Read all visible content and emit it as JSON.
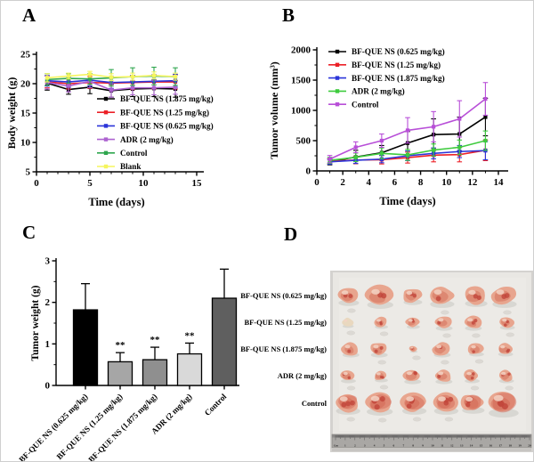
{
  "figure": {
    "background": "#ffffff",
    "panels": [
      {
        "label": "A"
      },
      {
        "label": "B"
      },
      {
        "label": "C"
      },
      {
        "label": "D"
      }
    ]
  },
  "chart_data": [
    {
      "id": "A",
      "type": "line",
      "title": "",
      "xlabel": "Time (days)",
      "ylabel": "Body weight (g)",
      "xlim": [
        0,
        15
      ],
      "ylim": [
        5,
        25
      ],
      "xticks": [
        0,
        5,
        10,
        15
      ],
      "yticks": [
        5,
        10,
        15,
        20,
        25
      ],
      "grid": false,
      "legend_position": "inside-bottom-right",
      "x": [
        1,
        3,
        5,
        7,
        9,
        11,
        13
      ],
      "series": [
        {
          "name": "BF-QUE NS (1.875 mg/kg)",
          "color": "#000000",
          "values": [
            20.1,
            19.0,
            19.4,
            18.8,
            19.1,
            19.2,
            19.1
          ],
          "errors": [
            1.2,
            0.8,
            1.1,
            1.1,
            1.3,
            1.4,
            1.4
          ]
        },
        {
          "name": "BF-QUE NS (1.25 mg/kg)",
          "color": "#ec2027",
          "values": [
            20.3,
            20.0,
            20.2,
            20.1,
            20.2,
            20.3,
            20.3
          ],
          "errors": [
            1.0,
            0.9,
            1.0,
            1.1,
            1.2,
            1.2,
            1.2
          ]
        },
        {
          "name": "BF-QUE NS (0.625 mg/kg)",
          "color": "#2b35d9",
          "values": [
            20.5,
            20.3,
            20.6,
            20.2,
            20.3,
            20.4,
            20.5
          ],
          "errors": [
            0.9,
            0.9,
            1.0,
            1.0,
            1.1,
            1.1,
            1.1
          ]
        },
        {
          "name": "ADR (2 mg/kg)",
          "color": "#ad63d0",
          "values": [
            20.2,
            19.6,
            20.4,
            18.9,
            19.3,
            19.3,
            19.4
          ],
          "errors": [
            1.1,
            1.0,
            1.1,
            1.2,
            1.2,
            1.2,
            1.2
          ]
        },
        {
          "name": "Control",
          "color": "#2fa64e",
          "values": [
            20.7,
            20.9,
            20.8,
            21.0,
            21.2,
            21.3,
            21.2
          ],
          "errors": [
            1.0,
            0.8,
            0.9,
            1.4,
            1.5,
            1.5,
            1.5
          ]
        },
        {
          "name": "Blank",
          "color": "#f5f55e",
          "values": [
            21.0,
            21.3,
            21.6,
            21.1,
            21.2,
            21.4,
            21.2
          ],
          "errors": [
            0.7,
            0.5,
            0.5,
            0.6,
            0.6,
            0.6,
            0.6
          ]
        }
      ]
    },
    {
      "id": "B",
      "type": "line",
      "title": "",
      "xlabel": "Time (days)",
      "ylabel": "Tumor volume (mm³)",
      "xlim": [
        0,
        14
      ],
      "ylim": [
        0,
        2000
      ],
      "xticks": [
        0,
        2,
        4,
        6,
        8,
        10,
        12,
        14
      ],
      "yticks": [
        0,
        500,
        1000,
        1500,
        2000
      ],
      "grid": false,
      "legend_position": "inside-top-left",
      "x": [
        1,
        3,
        5,
        7,
        9,
        11,
        13
      ],
      "series": [
        {
          "name": "BF-QUE NS (0.625 mg/kg)",
          "color": "#000000",
          "values": [
            150,
            230,
            300,
            460,
            600,
            610,
            890
          ],
          "errors": [
            50,
            110,
            120,
            190,
            260,
            280,
            310
          ]
        },
        {
          "name": "BF-QUE NS (1.25 mg/kg)",
          "color": "#ec2027",
          "values": [
            160,
            180,
            185,
            220,
            260,
            270,
            340
          ],
          "errors": [
            40,
            60,
            70,
            90,
            110,
            120,
            170
          ]
        },
        {
          "name": "BF-QUE NS (1.875 mg/kg)",
          "color": "#2b35d9",
          "values": [
            150,
            175,
            195,
            250,
            290,
            320,
            335
          ],
          "errors": [
            40,
            50,
            60,
            80,
            90,
            100,
            150
          ]
        },
        {
          "name": "ADR (2 mg/kg)",
          "color": "#3ecb3e",
          "values": [
            175,
            225,
            290,
            265,
            345,
            390,
            500
          ],
          "errors": [
            50,
            70,
            90,
            90,
            100,
            120,
            160
          ]
        },
        {
          "name": "Control",
          "color": "#b84fd8",
          "values": [
            195,
            390,
            500,
            670,
            730,
            860,
            1190
          ],
          "errors": [
            60,
            90,
            110,
            210,
            250,
            300,
            270
          ]
        }
      ]
    },
    {
      "id": "C",
      "type": "bar",
      "title": "",
      "xlabel": "",
      "ylabel": "Tumor weight (g)",
      "ylim": [
        0,
        3
      ],
      "yticks": [
        0,
        1,
        2,
        3
      ],
      "grid": false,
      "categories": [
        "BF-QUE NS (0.625 mg/kg)",
        "BF-QUE NS (1.25 mg/kg)",
        "BF-QUE NS (1.875 mg/kg)",
        "ADR (2 mg/kg)",
        "Control"
      ],
      "values": [
        1.82,
        0.57,
        0.62,
        0.76,
        2.1
      ],
      "errors": [
        0.63,
        0.22,
        0.3,
        0.26,
        0.7
      ],
      "bar_colors": [
        "#000000",
        "#a6a6a6",
        "#8f8f8f",
        "#d9d9d9",
        "#5f5f5f"
      ],
      "significance": [
        "",
        "**",
        "**",
        "**",
        ""
      ]
    }
  ],
  "photo": {
    "description": "Photograph of excised tumors, 6 per group, ruler below",
    "rows": [
      {
        "label": "BF-QUE NS (0.625 mg/kg)",
        "count": 6,
        "sizes": [
          11,
          14,
          10,
          13,
          12,
          13
        ]
      },
      {
        "label": "BF-QUE NS (1.25 mg/kg)",
        "count": 6,
        "sizes": [
          6,
          7,
          7,
          9,
          9,
          8
        ]
      },
      {
        "label": "BF-QUE NS (1.875 mg/kg)",
        "count": 6,
        "sizes": [
          9,
          9,
          4,
          9,
          8,
          8
        ]
      },
      {
        "label": "ADR (2 mg/kg)",
        "count": 6,
        "sizes": [
          8,
          7,
          9,
          9,
          8,
          8
        ]
      },
      {
        "label": "Control",
        "count": 6,
        "sizes": [
          13,
          14,
          13,
          13,
          12,
          16
        ]
      }
    ],
    "palette": {
      "background": "#e9e7e3",
      "background_edge": "#d4d2cf",
      "tumor_base": "#e8a58e",
      "tumor_dark": "#d97f68",
      "tumor_spot": "#c2463b",
      "tumor_light": "#f3d4c4",
      "pale_tumor": "#e9d8bf",
      "ruler_body": "#a9a7a4",
      "ruler_dark": "#8b8988"
    },
    "ruler": {
      "label": "Cm",
      "max": 20
    }
  }
}
